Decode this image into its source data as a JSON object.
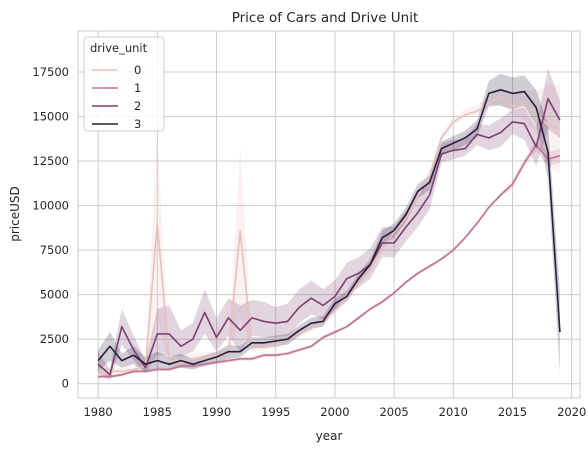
{
  "chart_data": {
    "type": "line",
    "title": "Price of Cars and Drive Unit",
    "xlabel": "year",
    "ylabel": "priceUSD",
    "xlim": [
      1978.3,
      2020.7
    ],
    "ylim": [
      -800,
      19800
    ],
    "xticks": [
      1980,
      1985,
      1990,
      1995,
      2000,
      2005,
      2010,
      2015,
      2020
    ],
    "yticks": [
      0,
      2500,
      5000,
      7500,
      10000,
      12500,
      15000,
      17500
    ],
    "grid": true,
    "legend": {
      "title": "drive_unit",
      "placement": "top-left"
    },
    "x": [
      1980,
      1981,
      1982,
      1983,
      1984,
      1985,
      1986,
      1987,
      1988,
      1989,
      1990,
      1991,
      1992,
      1993,
      1994,
      1995,
      1996,
      1997,
      1998,
      1999,
      2000,
      2001,
      2002,
      2003,
      2004,
      2005,
      2006,
      2007,
      2008,
      2009,
      2010,
      2011,
      2012,
      2013,
      2014,
      2015,
      2016,
      2017,
      2018,
      2019
    ],
    "series": [
      {
        "name": "0",
        "color": "#e8c1be",
        "values": [
          600,
          700,
          700,
          800,
          1000,
          9000,
          1300,
          1200,
          1400,
          1500,
          1600,
          1700,
          8600,
          2000,
          2100,
          2200,
          2500,
          2800,
          3100,
          3500,
          4100,
          4800,
          5700,
          6500,
          7600,
          8500,
          9300,
          10500,
          11700,
          13800,
          14700,
          15100,
          15300,
          15800,
          16100,
          15600,
          15600,
          15200,
          14500,
          14300
        ],
        "lower": [
          400,
          500,
          500,
          600,
          700,
          3800,
          1000,
          1000,
          1200,
          1300,
          1400,
          1500,
          3800,
          1800,
          1900,
          2000,
          2300,
          2600,
          2900,
          3300,
          3900,
          4600,
          5500,
          6300,
          7400,
          8300,
          9100,
          10300,
          11500,
          13600,
          14500,
          14900,
          15100,
          15500,
          15700,
          15100,
          14800,
          14000,
          12200,
          11800
        ],
        "upper": [
          800,
          900,
          900,
          1000,
          1400,
          14000,
          1700,
          1500,
          1700,
          1800,
          1800,
          2000,
          13300,
          2200,
          2300,
          2500,
          2800,
          3100,
          3400,
          3800,
          4400,
          5000,
          6000,
          6800,
          7900,
          8800,
          9600,
          10800,
          12000,
          14100,
          15000,
          15400,
          15600,
          16200,
          16500,
          16200,
          16500,
          16400,
          16800,
          16800
        ]
      },
      {
        "name": "1",
        "color": "#c17393",
        "values": [
          400,
          400,
          500,
          700,
          700,
          800,
          800,
          1000,
          1000,
          1100,
          1200,
          1300,
          1400,
          1400,
          1600,
          1600,
          1700,
          1900,
          2100,
          2600,
          2900,
          3200,
          3700,
          4200,
          4600,
          5100,
          5700,
          6200,
          6600,
          7000,
          7500,
          8200,
          9000,
          9900,
          10600,
          11200,
          12400,
          13400,
          12600,
          12800
        ],
        "lower": [
          300,
          300,
          400,
          600,
          600,
          700,
          700,
          900,
          900,
          1000,
          1100,
          1200,
          1300,
          1300,
          1500,
          1500,
          1600,
          1800,
          2000,
          2500,
          2800,
          3100,
          3600,
          4100,
          4500,
          5000,
          5600,
          6100,
          6500,
          6900,
          7400,
          8100,
          8900,
          9800,
          10500,
          11000,
          12200,
          13100,
          12200,
          12400
        ],
        "upper": [
          500,
          500,
          600,
          800,
          800,
          900,
          900,
          1100,
          1100,
          1200,
          1300,
          1400,
          1500,
          1500,
          1700,
          1700,
          1800,
          2000,
          2200,
          2700,
          3000,
          3300,
          3800,
          4300,
          4700,
          5200,
          5800,
          6300,
          6700,
          7100,
          7600,
          8300,
          9100,
          10000,
          10700,
          11400,
          12600,
          13700,
          13000,
          13200
        ]
      },
      {
        "name": "2",
        "color": "#7d3f70",
        "values": [
          1100,
          500,
          3200,
          1900,
          900,
          2800,
          2800,
          2100,
          2500,
          4000,
          2600,
          3700,
          3000,
          3700,
          3500,
          3400,
          3500,
          4300,
          4800,
          4400,
          4900,
          5900,
          6200,
          6700,
          7900,
          7900,
          8800,
          9600,
          10600,
          12900,
          13100,
          13200,
          14000,
          13800,
          14100,
          14700,
          14600,
          13300,
          16000,
          14800
        ],
        "lower": [
          600,
          200,
          2200,
          1300,
          600,
          1600,
          1600,
          1500,
          1800,
          2800,
          1800,
          2700,
          1800,
          2700,
          2600,
          2600,
          2700,
          3400,
          3900,
          3600,
          4100,
          5100,
          5400,
          5900,
          7100,
          7100,
          8000,
          8800,
          9800,
          12400,
          12600,
          12800,
          13400,
          13100,
          13300,
          14000,
          13700,
          12200,
          14300,
          13800
        ],
        "upper": [
          1800,
          800,
          4200,
          2700,
          1300,
          4200,
          4400,
          3000,
          3400,
          5300,
          3700,
          4800,
          4400,
          4700,
          4600,
          4300,
          4500,
          5300,
          5800,
          5300,
          5800,
          6800,
          7100,
          7600,
          8800,
          8800,
          9700,
          10500,
          11500,
          13500,
          13700,
          13700,
          14600,
          14500,
          14900,
          15400,
          15500,
          14400,
          17700,
          15900
        ]
      },
      {
        "name": "3",
        "color": "#2a1d3c",
        "values": [
          1300,
          2100,
          1300,
          1600,
          1100,
          1300,
          1100,
          1300,
          1100,
          1300,
          1500,
          1800,
          1800,
          2300,
          2300,
          2400,
          2500,
          3000,
          3400,
          3500,
          4500,
          4900,
          5900,
          6700,
          8200,
          8600,
          9500,
          10800,
          11300,
          13200,
          13500,
          13800,
          14300,
          16300,
          16500,
          16300,
          16400,
          15500,
          13000,
          2900
        ],
        "lower": [
          700,
          1300,
          900,
          1100,
          700,
          800,
          800,
          900,
          800,
          1000,
          1200,
          1400,
          1500,
          2000,
          2000,
          2100,
          2200,
          2700,
          3100,
          3200,
          4200,
          4600,
          5600,
          6400,
          7800,
          8200,
          9100,
          10400,
          10900,
          12800,
          13100,
          13400,
          13800,
          15600,
          15600,
          15400,
          15600,
          14500,
          11500,
          600
        ],
        "upper": [
          1900,
          2900,
          1700,
          2100,
          1500,
          1800,
          1500,
          1700,
          1400,
          1600,
          1800,
          2200,
          2100,
          2600,
          2600,
          2700,
          2800,
          3300,
          3700,
          3800,
          4800,
          5200,
          6200,
          7000,
          8600,
          9000,
          9900,
          11200,
          11700,
          13600,
          13900,
          14200,
          14800,
          17000,
          17400,
          17200,
          17300,
          16500,
          14500,
          5200
        ]
      }
    ]
  }
}
